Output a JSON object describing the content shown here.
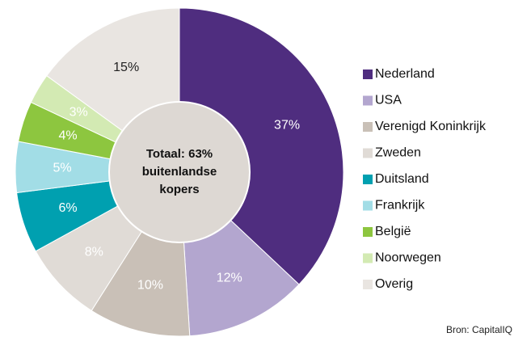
{
  "chart_data": {
    "type": "donut",
    "categories": [
      "Nederland",
      "USA",
      "Verenigd Koninkrijk",
      "Zweden",
      "Duitsland",
      "Frankrijk",
      "België",
      "Noorwegen",
      "Overig"
    ],
    "values": [
      37,
      12,
      10,
      8,
      6,
      5,
      4,
      3,
      15
    ],
    "value_labels": [
      "37%",
      "12%",
      "10%",
      "8%",
      "6%",
      "5%",
      "4%",
      "3%",
      "15%"
    ],
    "colors": [
      "#4f2d7f",
      "#b3a6cf",
      "#c9c0b7",
      "#e0dbd6",
      "#00a0b0",
      "#a2dde6",
      "#8dc63f",
      "#d3eab3",
      "#e9e5e1"
    ],
    "label_colors": [
      "#ffffff",
      "#ffffff",
      "#ffffff",
      "#ffffff",
      "#ffffff",
      "#ffffff",
      "#ffffff",
      "#ffffff",
      "#222222"
    ],
    "center_label": [
      "Totaal: 63%",
      "buitenlandse",
      "kopers"
    ],
    "source": "Bron: CapitalIQ",
    "legend": "right"
  }
}
